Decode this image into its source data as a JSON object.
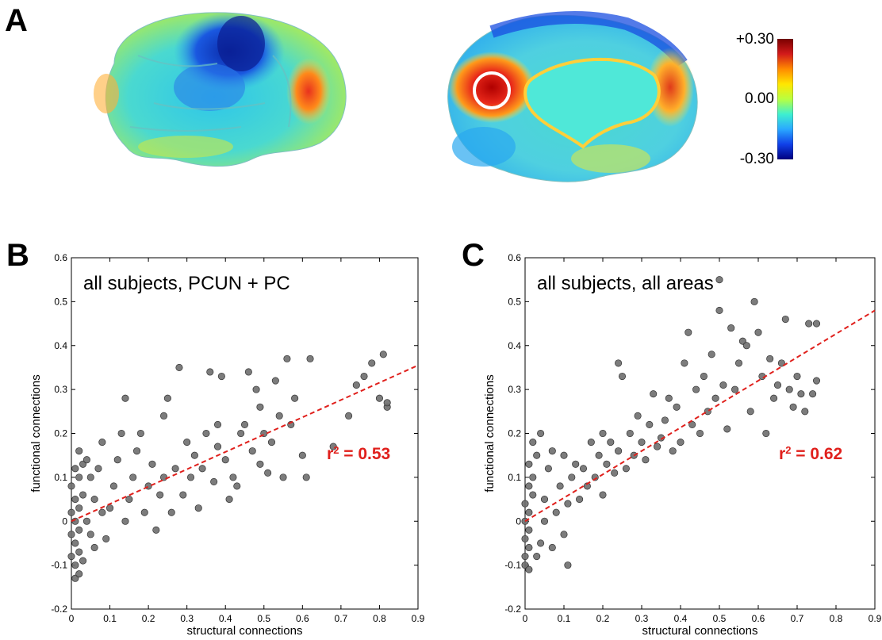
{
  "figure": {
    "panel_labels": [
      "A",
      "B",
      "C"
    ]
  },
  "colorbar": {
    "ticks": [
      "+0.30",
      "0.00",
      "-0.30"
    ],
    "colors": [
      "#7a0000",
      "#d21a1a",
      "#ff8a00",
      "#ffe600",
      "#b8ff40",
      "#3ef0d0",
      "#2aa8ff",
      "#1040e8",
      "#000080"
    ]
  },
  "chart_data": [
    {
      "type": "scatter",
      "panel": "B",
      "title": "all subjects, PCUN + PC",
      "xlabel": "structural connections",
      "ylabel": "functional connections",
      "xlim": [
        0,
        0.9
      ],
      "ylim": [
        -0.2,
        0.6
      ],
      "xticks": [
        "0",
        "0.1",
        "0.2",
        "0.3",
        "0.4",
        "0.5",
        "0.6",
        "0.7",
        "0.8",
        "0.9"
      ],
      "yticks": [
        "-0.2",
        "-0.1",
        "0",
        "0.1",
        "0.2",
        "0.3",
        "0.4",
        "0.5",
        "0.6"
      ],
      "fit": {
        "x": [
          0,
          0.9
        ],
        "y": [
          0,
          0.355
        ],
        "style": "dashed",
        "color": "#e0201c"
      },
      "r2_label": {
        "prefix": "r",
        "sup": "2",
        "text": " = 0.53"
      },
      "marker_color": "#6e6e6e",
      "points": [
        [
          0.01,
          -0.13
        ],
        [
          0.02,
          -0.12
        ],
        [
          0.01,
          -0.1
        ],
        [
          0.0,
          -0.08
        ],
        [
          0.02,
          -0.07
        ],
        [
          0.03,
          -0.09
        ],
        [
          0.01,
          -0.05
        ],
        [
          0.0,
          -0.03
        ],
        [
          0.02,
          -0.02
        ],
        [
          0.01,
          0.0
        ],
        [
          0.0,
          0.02
        ],
        [
          0.02,
          0.03
        ],
        [
          0.01,
          0.05
        ],
        [
          0.03,
          0.06
        ],
        [
          0.0,
          0.08
        ],
        [
          0.02,
          0.1
        ],
        [
          0.01,
          0.12
        ],
        [
          0.03,
          0.13
        ],
        [
          0.02,
          0.16
        ],
        [
          0.04,
          0.14
        ],
        [
          0.05,
          0.1
        ],
        [
          0.06,
          0.05
        ],
        [
          0.04,
          0.0
        ],
        [
          0.05,
          -0.03
        ],
        [
          0.06,
          -0.06
        ],
        [
          0.08,
          0.02
        ],
        [
          0.07,
          0.12
        ],
        [
          0.08,
          0.18
        ],
        [
          0.09,
          -0.04
        ],
        [
          0.1,
          0.03
        ],
        [
          0.11,
          0.08
        ],
        [
          0.12,
          0.14
        ],
        [
          0.13,
          0.2
        ],
        [
          0.14,
          0.28
        ],
        [
          0.14,
          0.0
        ],
        [
          0.15,
          0.05
        ],
        [
          0.16,
          0.1
        ],
        [
          0.17,
          0.16
        ],
        [
          0.18,
          0.2
        ],
        [
          0.19,
          0.02
        ],
        [
          0.2,
          0.08
        ],
        [
          0.21,
          0.13
        ],
        [
          0.22,
          -0.02
        ],
        [
          0.23,
          0.06
        ],
        [
          0.24,
          0.1
        ],
        [
          0.24,
          0.24
        ],
        [
          0.25,
          0.28
        ],
        [
          0.26,
          0.02
        ],
        [
          0.27,
          0.12
        ],
        [
          0.28,
          0.35
        ],
        [
          0.29,
          0.06
        ],
        [
          0.3,
          0.18
        ],
        [
          0.31,
          0.1
        ],
        [
          0.32,
          0.15
        ],
        [
          0.33,
          0.03
        ],
        [
          0.34,
          0.12
        ],
        [
          0.35,
          0.2
        ],
        [
          0.36,
          0.34
        ],
        [
          0.37,
          0.09
        ],
        [
          0.38,
          0.17
        ],
        [
          0.38,
          0.22
        ],
        [
          0.39,
          0.33
        ],
        [
          0.4,
          0.14
        ],
        [
          0.41,
          0.05
        ],
        [
          0.42,
          0.1
        ],
        [
          0.43,
          0.08
        ],
        [
          0.44,
          0.2
        ],
        [
          0.45,
          0.22
        ],
        [
          0.46,
          0.34
        ],
        [
          0.47,
          0.16
        ],
        [
          0.48,
          0.3
        ],
        [
          0.49,
          0.26
        ],
        [
          0.49,
          0.13
        ],
        [
          0.5,
          0.2
        ],
        [
          0.51,
          0.11
        ],
        [
          0.52,
          0.18
        ],
        [
          0.53,
          0.32
        ],
        [
          0.54,
          0.24
        ],
        [
          0.55,
          0.1
        ],
        [
          0.56,
          0.37
        ],
        [
          0.57,
          0.22
        ],
        [
          0.58,
          0.28
        ],
        [
          0.6,
          0.15
        ],
        [
          0.61,
          0.1
        ],
        [
          0.62,
          0.37
        ],
        [
          0.68,
          0.17
        ],
        [
          0.72,
          0.24
        ],
        [
          0.74,
          0.31
        ],
        [
          0.76,
          0.33
        ],
        [
          0.78,
          0.36
        ],
        [
          0.8,
          0.28
        ],
        [
          0.81,
          0.38
        ],
        [
          0.82,
          0.26
        ],
        [
          0.82,
          0.27
        ]
      ]
    },
    {
      "type": "scatter",
      "panel": "C",
      "title": "all subjects, all areas",
      "xlabel": "structural connections",
      "ylabel": "functional connections",
      "xlim": [
        0,
        0.9
      ],
      "ylim": [
        -0.2,
        0.6
      ],
      "xticks": [
        "0",
        "0.1",
        "0.2",
        "0.3",
        "0.4",
        "0.5",
        "0.6",
        "0.7",
        "0.8",
        "0.9"
      ],
      "yticks": [
        "-0.2",
        "-0.1",
        "0",
        "0.1",
        "0.2",
        "0.3",
        "0.4",
        "0.5",
        "0.6"
      ],
      "fit": {
        "x": [
          0,
          0.9
        ],
        "y": [
          0,
          0.48
        ],
        "style": "dashed",
        "color": "#e0201c"
      },
      "r2_label": {
        "prefix": "r",
        "sup": "2",
        "text": " = 0.62"
      },
      "marker_color": "#6e6e6e",
      "points": [
        [
          0.0,
          -0.1
        ],
        [
          0.01,
          -0.11
        ],
        [
          0.0,
          -0.08
        ],
        [
          0.01,
          -0.06
        ],
        [
          0.0,
          -0.04
        ],
        [
          0.01,
          -0.02
        ],
        [
          0.0,
          0.0
        ],
        [
          0.01,
          0.02
        ],
        [
          0.0,
          0.04
        ],
        [
          0.02,
          0.06
        ],
        [
          0.01,
          0.08
        ],
        [
          0.02,
          0.1
        ],
        [
          0.01,
          0.13
        ],
        [
          0.03,
          0.15
        ],
        [
          0.02,
          0.18
        ],
        [
          0.04,
          0.2
        ],
        [
          0.03,
          -0.08
        ],
        [
          0.04,
          -0.05
        ],
        [
          0.05,
          0.0
        ],
        [
          0.05,
          0.05
        ],
        [
          0.06,
          0.12
        ],
        [
          0.07,
          0.16
        ],
        [
          0.07,
          -0.06
        ],
        [
          0.08,
          0.02
        ],
        [
          0.09,
          0.08
        ],
        [
          0.1,
          0.15
        ],
        [
          0.1,
          -0.03
        ],
        [
          0.11,
          0.04
        ],
        [
          0.11,
          -0.1
        ],
        [
          0.12,
          0.1
        ],
        [
          0.13,
          0.13
        ],
        [
          0.14,
          0.05
        ],
        [
          0.15,
          0.12
        ],
        [
          0.16,
          0.08
        ],
        [
          0.17,
          0.18
        ],
        [
          0.18,
          0.1
        ],
        [
          0.19,
          0.15
        ],
        [
          0.2,
          0.06
        ],
        [
          0.2,
          0.2
        ],
        [
          0.21,
          0.13
        ],
        [
          0.22,
          0.18
        ],
        [
          0.23,
          0.11
        ],
        [
          0.24,
          0.16
        ],
        [
          0.24,
          0.36
        ],
        [
          0.25,
          0.33
        ],
        [
          0.26,
          0.12
        ],
        [
          0.27,
          0.2
        ],
        [
          0.28,
          0.15
        ],
        [
          0.29,
          0.24
        ],
        [
          0.3,
          0.18
        ],
        [
          0.31,
          0.14
        ],
        [
          0.32,
          0.22
        ],
        [
          0.33,
          0.29
        ],
        [
          0.34,
          0.17
        ],
        [
          0.35,
          0.19
        ],
        [
          0.36,
          0.23
        ],
        [
          0.37,
          0.28
        ],
        [
          0.38,
          0.16
        ],
        [
          0.39,
          0.26
        ],
        [
          0.4,
          0.18
        ],
        [
          0.41,
          0.36
        ],
        [
          0.42,
          0.43
        ],
        [
          0.43,
          0.22
        ],
        [
          0.44,
          0.3
        ],
        [
          0.45,
          0.2
        ],
        [
          0.46,
          0.33
        ],
        [
          0.47,
          0.25
        ],
        [
          0.48,
          0.38
        ],
        [
          0.49,
          0.28
        ],
        [
          0.5,
          0.48
        ],
        [
          0.5,
          0.55
        ],
        [
          0.51,
          0.31
        ],
        [
          0.52,
          0.21
        ],
        [
          0.53,
          0.44
        ],
        [
          0.54,
          0.3
        ],
        [
          0.55,
          0.36
        ],
        [
          0.56,
          0.41
        ],
        [
          0.57,
          0.4
        ],
        [
          0.58,
          0.25
        ],
        [
          0.59,
          0.5
        ],
        [
          0.6,
          0.43
        ],
        [
          0.61,
          0.33
        ],
        [
          0.62,
          0.2
        ],
        [
          0.63,
          0.37
        ],
        [
          0.64,
          0.28
        ],
        [
          0.65,
          0.31
        ],
        [
          0.66,
          0.36
        ],
        [
          0.67,
          0.46
        ],
        [
          0.68,
          0.3
        ],
        [
          0.69,
          0.26
        ],
        [
          0.7,
          0.33
        ],
        [
          0.71,
          0.29
        ],
        [
          0.72,
          0.25
        ],
        [
          0.73,
          0.45
        ],
        [
          0.74,
          0.29
        ],
        [
          0.75,
          0.45
        ],
        [
          0.75,
          0.32
        ]
      ]
    }
  ]
}
